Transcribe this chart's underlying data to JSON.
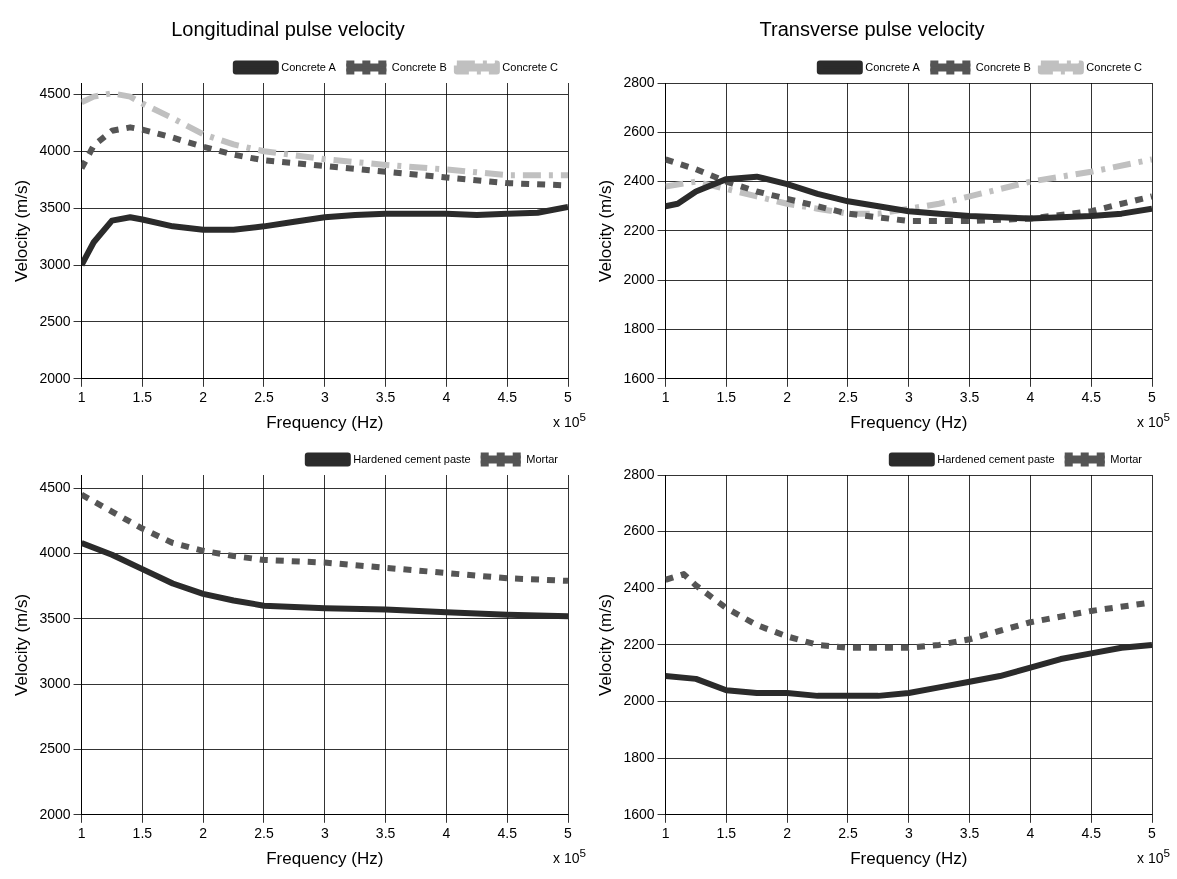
{
  "chart_data": [
    {
      "type": "line",
      "title": "Longitudinal pulse velocity",
      "xlabel": "Frequency (Hz)",
      "ylabel": "Velocity (m/s)",
      "annotations": [
        "x 10$^{5}$"
      ],
      "xlim": [
        1,
        5
      ],
      "xticks": [
        1,
        1.5,
        2,
        2.5,
        3,
        3.5,
        4,
        4.5,
        5
      ],
      "ylim": [
        2000,
        4600
      ],
      "yticks": [
        2000,
        2500,
        3000,
        3500,
        4000,
        4500
      ],
      "grid": true,
      "legend": "top right",
      "series": [
        {
          "name": "Concrete A",
          "color": "#2b2b2b",
          "line_style": "solid",
          "x": [
            1,
            1.1,
            1.25,
            1.4,
            1.5,
            1.75,
            2,
            2.25,
            2.5,
            2.75,
            3,
            3.25,
            3.5,
            4,
            4.25,
            4.5,
            4.75,
            5
          ],
          "values": [
            3000,
            3200,
            3390,
            3420,
            3400,
            3340,
            3310,
            3310,
            3340,
            3380,
            3420,
            3440,
            3450,
            3450,
            3440,
            3450,
            3460,
            3510
          ]
        },
        {
          "name": "Concrete B",
          "color": "#555555",
          "line_style": "dotted",
          "x": [
            1,
            1.1,
            1.25,
            1.4,
            1.5,
            1.75,
            2,
            2.25,
            2.5,
            3,
            3.5,
            4,
            4.5,
            5
          ],
          "values": [
            3850,
            4050,
            4180,
            4210,
            4190,
            4120,
            4040,
            3970,
            3920,
            3870,
            3820,
            3770,
            3720,
            3700
          ]
        },
        {
          "name": "Concrete C",
          "color": "#c0c0c0",
          "line_style": "dashed",
          "x": [
            1,
            1.1,
            1.25,
            1.4,
            1.5,
            1.75,
            2,
            2.25,
            2.5,
            3,
            3.5,
            4,
            4.5,
            5
          ],
          "values": [
            4430,
            4480,
            4510,
            4480,
            4420,
            4290,
            4150,
            4060,
            4000,
            3930,
            3880,
            3840,
            3790,
            3790
          ]
        }
      ]
    },
    {
      "type": "line",
      "title": "Transverse pulse velocity",
      "xlabel": "Frequency (Hz)",
      "ylabel": "Velocity (m/s)",
      "annotations": [
        "x 10$^{5}$"
      ],
      "xlim": [
        1,
        5
      ],
      "xticks": [
        1,
        1.5,
        2,
        2.5,
        3,
        3.5,
        4,
        4.5,
        5
      ],
      "ylim": [
        1600,
        2800
      ],
      "yticks": [
        1600,
        1800,
        2000,
        2200,
        2400,
        2600,
        2800
      ],
      "grid": true,
      "legend": "top right",
      "series": [
        {
          "name": "Concrete A",
          "color": "#2b2b2b",
          "line_style": "solid",
          "x": [
            1,
            1.1,
            1.25,
            1.5,
            1.75,
            2,
            2.25,
            2.5,
            2.75,
            3,
            3.25,
            3.5,
            4,
            4.5,
            4.75,
            5
          ],
          "values": [
            2300,
            2310,
            2360,
            2410,
            2420,
            2390,
            2350,
            2320,
            2300,
            2280,
            2270,
            2260,
            2250,
            2260,
            2270,
            2290
          ]
        },
        {
          "name": "Concrete B",
          "color": "#555555",
          "line_style": "dotted",
          "x": [
            1,
            1.25,
            1.5,
            1.75,
            2,
            2.25,
            2.5,
            3,
            3.5,
            4,
            4.5,
            5
          ],
          "values": [
            2490,
            2450,
            2400,
            2360,
            2330,
            2300,
            2270,
            2240,
            2240,
            2250,
            2280,
            2340
          ]
        },
        {
          "name": "Concrete C",
          "color": "#c0c0c0",
          "line_style": "dashed",
          "x": [
            1,
            1.25,
            1.5,
            1.75,
            2,
            2.25,
            2.5,
            2.75,
            3,
            3.25,
            3.5,
            3.75,
            4,
            4.5,
            5
          ],
          "values": [
            2380,
            2400,
            2370,
            2340,
            2310,
            2290,
            2270,
            2270,
            2290,
            2310,
            2340,
            2370,
            2400,
            2440,
            2490
          ]
        }
      ]
    },
    {
      "type": "line",
      "xlabel": "Frequency (Hz)",
      "ylabel": "Velocity (m/s)",
      "annotations": [
        "x 10$^{5}$"
      ],
      "xlim": [
        1,
        5
      ],
      "xticks": [
        1,
        1.5,
        2,
        2.5,
        3,
        3.5,
        4,
        4.5,
        5
      ],
      "ylim": [
        2000,
        4600
      ],
      "yticks": [
        2000,
        2500,
        3000,
        3500,
        4000,
        4500
      ],
      "grid": true,
      "legend": "top right",
      "series": [
        {
          "name": "Hardened cement paste",
          "color": "#2b2b2b",
          "line_style": "solid",
          "x": [
            1,
            1.25,
            1.5,
            1.75,
            2,
            2.25,
            2.5,
            3,
            3.5,
            4,
            4.5,
            5
          ],
          "values": [
            4080,
            3990,
            3880,
            3770,
            3690,
            3640,
            3600,
            3580,
            3570,
            3550,
            3530,
            3520
          ]
        },
        {
          "name": "Mortar",
          "color": "#555555",
          "line_style": "dotted",
          "x": [
            1,
            1.25,
            1.5,
            1.75,
            2,
            2.25,
            2.5,
            3,
            3.5,
            4,
            4.5,
            5
          ],
          "values": [
            4450,
            4320,
            4190,
            4080,
            4020,
            3980,
            3950,
            3930,
            3890,
            3850,
            3810,
            3790
          ]
        }
      ]
    },
    {
      "type": "line",
      "xlabel": "Frequency (Hz)",
      "ylabel": "Velocity (m/s)",
      "annotations": [
        "x 10$^{5}$"
      ],
      "xlim": [
        1,
        5
      ],
      "xticks": [
        1,
        1.5,
        2,
        2.5,
        3,
        3.5,
        4,
        4.5,
        5
      ],
      "ylim": [
        1600,
        2800
      ],
      "yticks": [
        1600,
        1800,
        2000,
        2200,
        2400,
        2600,
        2800
      ],
      "grid": true,
      "legend": "top right",
      "series": [
        {
          "name": "Hardened cement paste",
          "color": "#2b2b2b",
          "line_style": "solid",
          "x": [
            1,
            1.25,
            1.5,
            1.75,
            2,
            2.25,
            2.75,
            3,
            3.25,
            3.5,
            3.75,
            4,
            4.25,
            4.5,
            4.75,
            5
          ],
          "values": [
            2090,
            2080,
            2040,
            2030,
            2030,
            2020,
            2020,
            2030,
            2050,
            2070,
            2090,
            2120,
            2150,
            2170,
            2190,
            2200
          ]
        },
        {
          "name": "Mortar",
          "color": "#555555",
          "line_style": "dotted",
          "x": [
            1,
            1.15,
            1.25,
            1.5,
            1.75,
            2,
            2.25,
            2.5,
            3,
            3.25,
            3.5,
            3.75,
            4,
            4.5,
            5
          ],
          "values": [
            2430,
            2450,
            2410,
            2330,
            2270,
            2230,
            2200,
            2190,
            2190,
            2200,
            2220,
            2250,
            2280,
            2320,
            2350
          ]
        }
      ]
    }
  ]
}
